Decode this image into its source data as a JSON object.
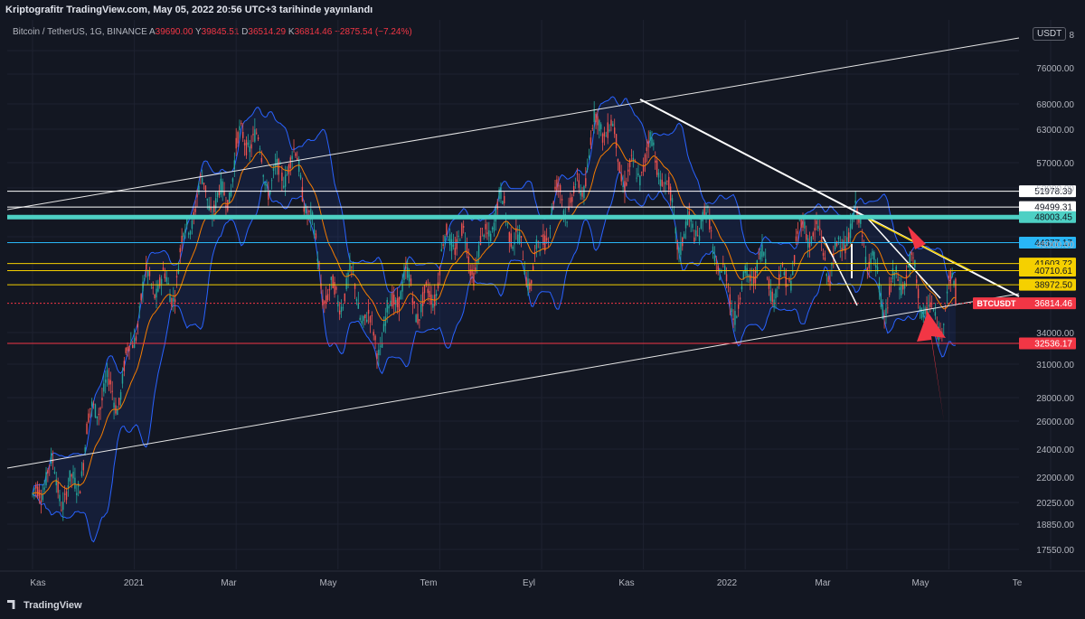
{
  "header": {
    "published": "Kriptografitr TradingView.com, May 05, 2022 20:56 UTC+3 tarihinde yayınlandı"
  },
  "symbol": {
    "name": "Bitcoin / TetherUS, 1G, BINANCE",
    "o_label": "A",
    "open": "39690.00",
    "h_label": "Y",
    "high": "39845.51",
    "l_label": "D",
    "low": "36514.29",
    "c_label": "K",
    "close": "36814.46",
    "change": "−2875.54 (−7.24%)"
  },
  "currency": "USDT",
  "brand": "TradingView",
  "colors": {
    "background": "#131722",
    "up": "#26a69a",
    "down": "#ef5350",
    "bollinger": "#2962ff",
    "ema": "#f57c00",
    "horizontal_white": "#ffffff",
    "horizontal_teal": "#4dd0c4",
    "horizontal_blue": "#29b6f6",
    "horizontal_yellow": "#f5d000",
    "horizontal_red": "#f23645",
    "arrow": "#f23645"
  },
  "chart_data": {
    "type": "candlestick",
    "scale": "log",
    "x_labels": [
      "Kas",
      "2021",
      "Mar",
      "May",
      "Tem",
      "Eyl",
      "Kas",
      "2022",
      "Mar",
      "May",
      "Te"
    ],
    "y_ticks": [
      "8",
      "76000.00",
      "68000.00",
      "63000.00",
      "57000.00",
      "52000.00",
      "45000.00",
      "34000.00",
      "31000.00",
      "28000.00",
      "26000.00",
      "24000.00",
      "22000.00",
      "20250.00",
      "18850.00",
      "17550.00"
    ],
    "price_key": [
      {
        "month": "2020-11",
        "close": 19500
      },
      {
        "month": "2020-12",
        "close": 23000
      },
      {
        "month": "2021-01",
        "close": 34000
      },
      {
        "month": "2021-02",
        "close": 45000
      },
      {
        "month": "2021-03",
        "close": 58000
      },
      {
        "month": "2021-04",
        "close": 57000
      },
      {
        "month": "2021-05",
        "close": 37000
      },
      {
        "month": "2021-06",
        "close": 35000
      },
      {
        "month": "2021-07",
        "close": 41000
      },
      {
        "month": "2021-08",
        "close": 47000
      },
      {
        "month": "2021-09",
        "close": 43000
      },
      {
        "month": "2021-10",
        "close": 61000
      },
      {
        "month": "2021-11",
        "close": 57000
      },
      {
        "month": "2021-12",
        "close": 46000
      },
      {
        "month": "2022-01",
        "close": 38000
      },
      {
        "month": "2022-02",
        "close": 43000
      },
      {
        "month": "2022-03",
        "close": 45500
      },
      {
        "month": "2022-04",
        "close": 38500
      },
      {
        "month": "2022-05",
        "close": 36814.46
      }
    ],
    "horizontal_levels": [
      {
        "price": 51978.39,
        "label": "51978.39",
        "color": "white"
      },
      {
        "price": 49499.31,
        "label": "49499.31",
        "color": "white"
      },
      {
        "price": 48003.45,
        "label": "48003.45",
        "color": "teal"
      },
      {
        "price": 44377.17,
        "label": "44377.17",
        "color": "blue"
      },
      {
        "price": 41603.72,
        "label": "41603.72",
        "color": "yellow"
      },
      {
        "price": 40710.61,
        "label": "40710.61",
        "color": "yellow"
      },
      {
        "price": 38972.5,
        "label": "38972.50",
        "color": "yellow"
      },
      {
        "price": 36814.46,
        "label": "36814.46",
        "color": "red",
        "tag": "BTCUSDT"
      },
      {
        "price": 32536.17,
        "label": "32536.17",
        "color": "red"
      }
    ],
    "last_price": 36814.46
  }
}
